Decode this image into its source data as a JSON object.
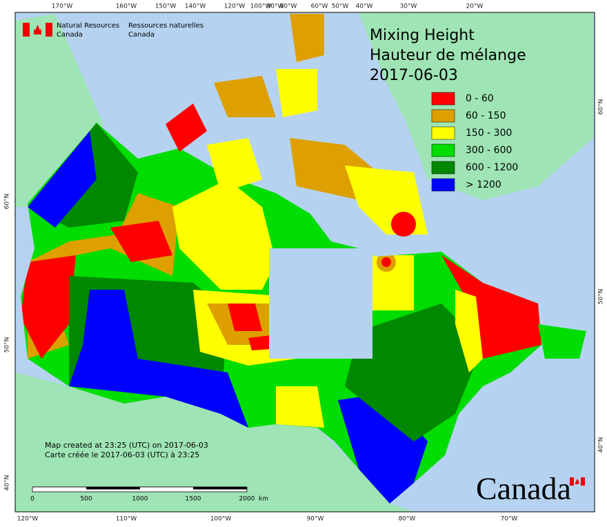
{
  "agency_en": [
    "Natural Resources",
    "Canada"
  ],
  "agency_fr": [
    "Ressources naturelles",
    "Canada"
  ],
  "title": [
    "Mixing Height",
    "Hauteur de mélange",
    "2017-06-03"
  ],
  "legend": [
    {
      "label": "0 - 60",
      "color": "#ff0000"
    },
    {
      "label": "60 - 150",
      "color": "#dda000"
    },
    {
      "label": "150 - 300",
      "color": "#ffff00"
    },
    {
      "label": "300 - 600",
      "color": "#00dd00"
    },
    {
      "label": "600 - 1200",
      "color": "#008800"
    },
    {
      "label": "> 1200",
      "color": "#0000ff"
    }
  ],
  "top_labels": [
    "170°W",
    "160°W",
    "150°W",
    "140°W",
    "120°W",
    "100°W",
    "90°W",
    "80°W",
    "60°W",
    "50°W",
    "40°W",
    "30°W",
    "20°W"
  ],
  "bottom_labels": [
    "120°W",
    "110°W",
    "100°W",
    "90°W",
    "80°W",
    "70°W"
  ],
  "left_labels": [
    "60°N",
    "50°N",
    "40°N"
  ],
  "right_labels": [
    "60°N",
    "50°N",
    "40°N"
  ],
  "scale": {
    "ticks": [
      "0",
      "500",
      "1000",
      "1500",
      "2000"
    ],
    "unit": "km"
  },
  "footer": [
    "Map created at 23:25 (UTC) on 2017-06-03",
    "Carte créée le 2017-06-03 (UTC) à 23:25"
  ],
  "wordmark": "Canada"
}
